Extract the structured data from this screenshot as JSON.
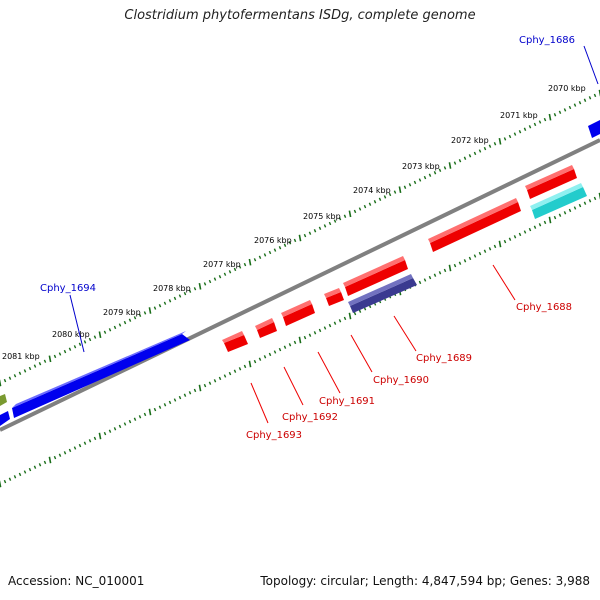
{
  "title": "Clostridium phytofermentans ISDg, complete genome",
  "footer": {
    "accession": "Accession: NC_010001",
    "summary": "Topology: circular; Length: 4,847,594 bp; Genes: 3,988"
  },
  "colors": {
    "forward_gene": "#0000ee",
    "reverse_gene": "#ee0000",
    "tick": "#1a6e1a",
    "backbone": "#808080",
    "purple_gene": "#3a3a90",
    "cyan_gene": "#22cccc",
    "olive_gene": "#7a9a30"
  },
  "scale_labels": [
    "2070 kbp",
    "2071 kbp",
    "2072 kbp",
    "2073 kbp",
    "2074 kbp",
    "2075 kbp",
    "2076 kbp",
    "2077 kbp",
    "2078 kbp",
    "2079 kbp",
    "2080 kbp",
    "2081 kbp"
  ],
  "gene_labels": {
    "cphy_1686": "Cphy_1686",
    "cphy_1694": "Cphy_1694",
    "cphy_1688": "Cphy_1688",
    "cphy_1689": "Cphy_1689",
    "cphy_1690": "Cphy_1690",
    "cphy_1691": "Cphy_1691",
    "cphy_1692": "Cphy_1692",
    "cphy_1693": "Cphy_1693"
  }
}
